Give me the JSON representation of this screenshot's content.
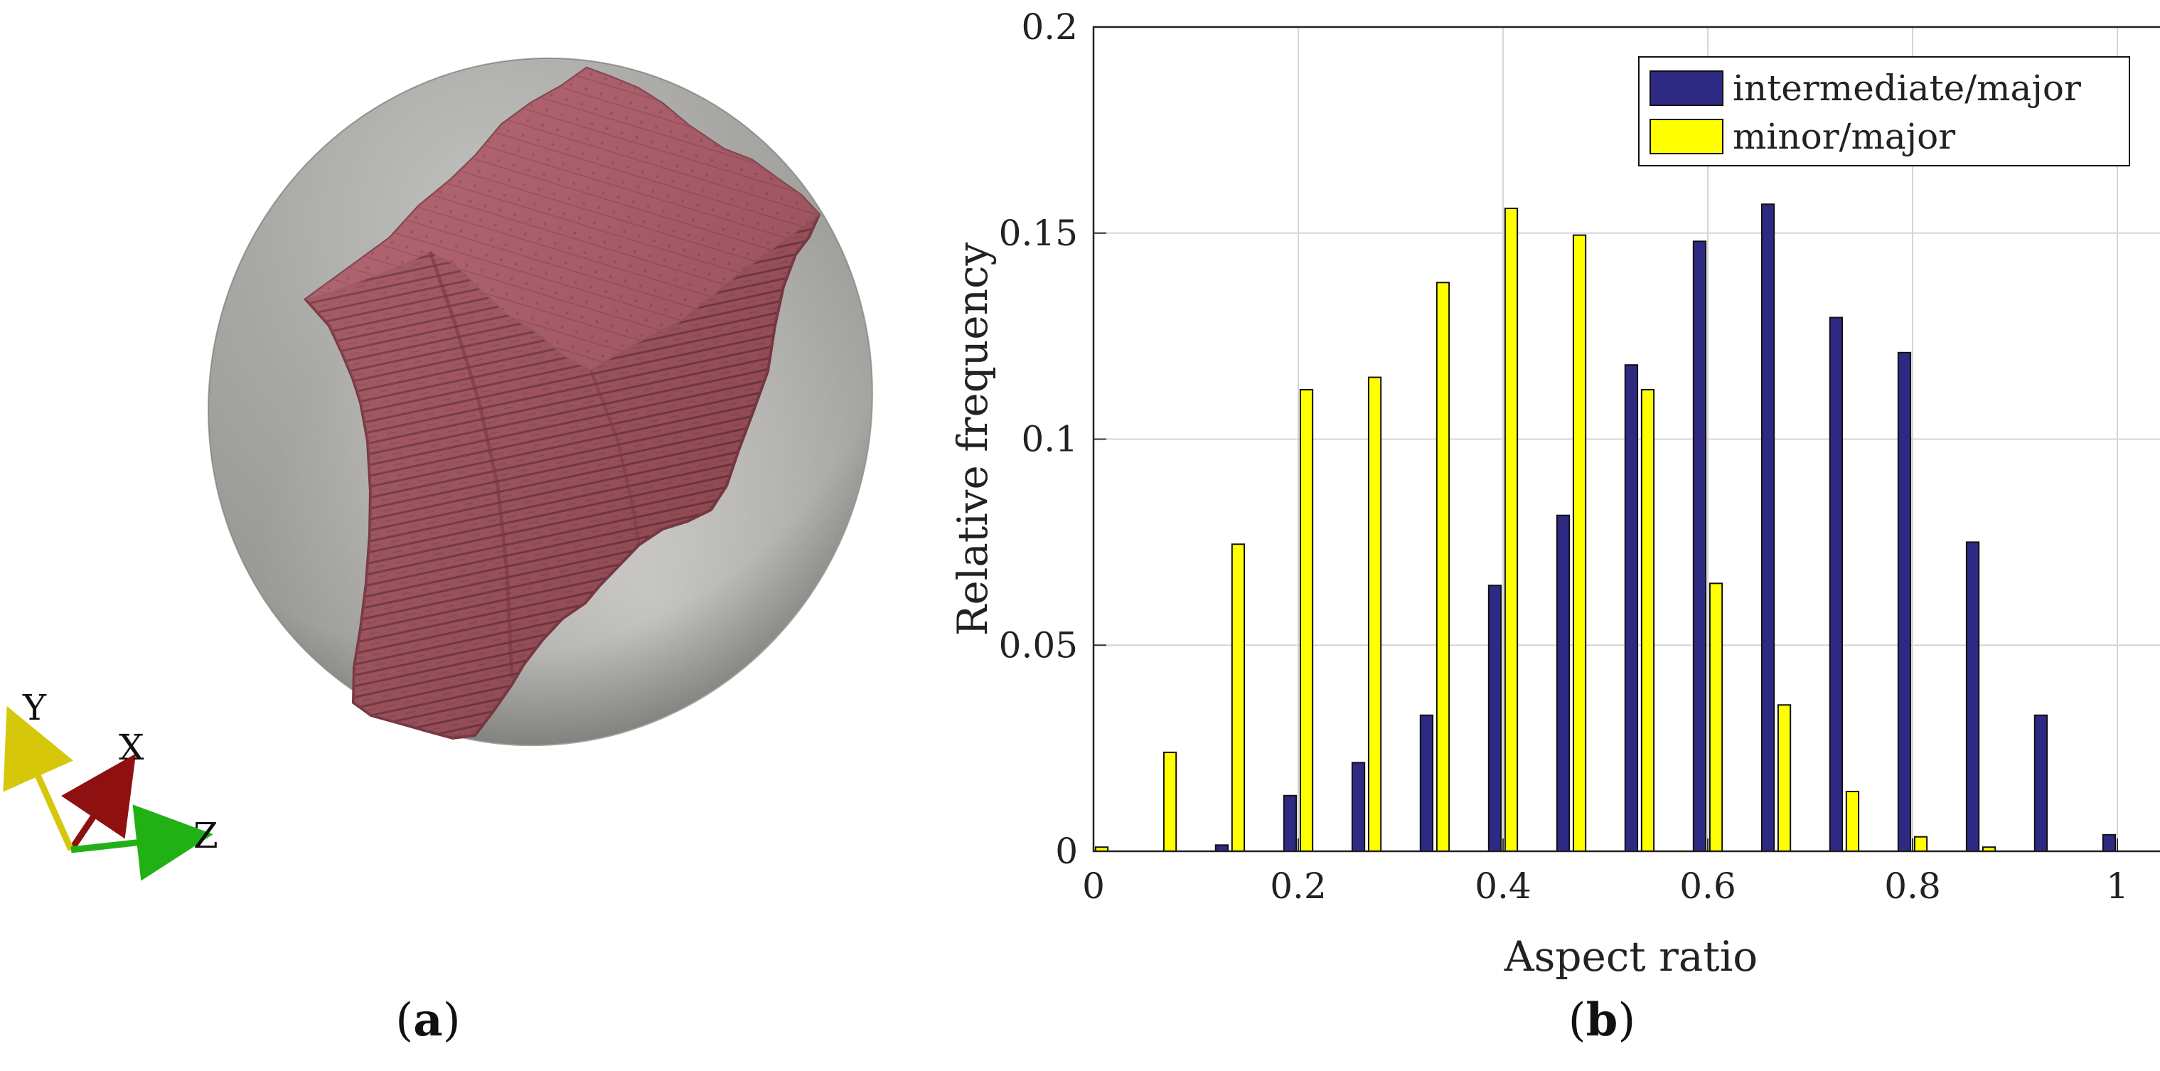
{
  "captions": {
    "panel_a_open": "(",
    "panel_a_letter": "a",
    "panel_a_close": ")",
    "panel_b_open": "(",
    "panel_b_letter": "b",
    "panel_b_close": ")"
  },
  "panel_a": {
    "axis_labels": {
      "x": "X",
      "y": "Y",
      "z": "Z"
    },
    "colors": {
      "ellipsoid": "#d8d8d6",
      "grain": "#9f4a57",
      "grain_dark": "#6c2d36",
      "x_axis": "#8f1010",
      "y_axis": "#d6c70b",
      "z_axis": "#22b114"
    }
  },
  "chart_data": {
    "type": "bar",
    "title": "",
    "xlabel": "Aspect ratio",
    "ylabel": "Relative frequency",
    "xlim": [
      0,
      1.05
    ],
    "ylim": [
      0,
      0.2
    ],
    "xticks": [
      0,
      0.2,
      0.4,
      0.6,
      0.8,
      1
    ],
    "xtick_labels": [
      "0",
      "0.2",
      "0.4",
      "0.6",
      "0.8",
      "1"
    ],
    "yticks": [
      0,
      0.05,
      0.1,
      0.15,
      0.2
    ],
    "ytick_labels": [
      "0",
      "0.05",
      "0.1",
      "0.15",
      "0.2"
    ],
    "grid": true,
    "legend_position": "top-right",
    "bin_centers": [
      0.0,
      0.0667,
      0.1333,
      0.2,
      0.2667,
      0.3333,
      0.4,
      0.4667,
      0.5333,
      0.6,
      0.6667,
      0.7333,
      0.8,
      0.8667,
      0.9333,
      1.0
    ],
    "series": [
      {
        "name": "intermediate/major",
        "color": "#2e2a83",
        "values": [
          0.0,
          0.0,
          0.0015,
          0.0135,
          0.0215,
          0.033,
          0.0645,
          0.0815,
          0.118,
          0.148,
          0.157,
          0.1295,
          0.121,
          0.075,
          0.033,
          0.004
        ]
      },
      {
        "name": "minor/major",
        "color": "#ffff00",
        "values": [
          0.001,
          0.024,
          0.0745,
          0.112,
          0.115,
          0.138,
          0.156,
          0.1495,
          0.112,
          0.065,
          0.0355,
          0.0145,
          0.0035,
          0.001,
          0.0,
          0.0
        ]
      }
    ]
  }
}
